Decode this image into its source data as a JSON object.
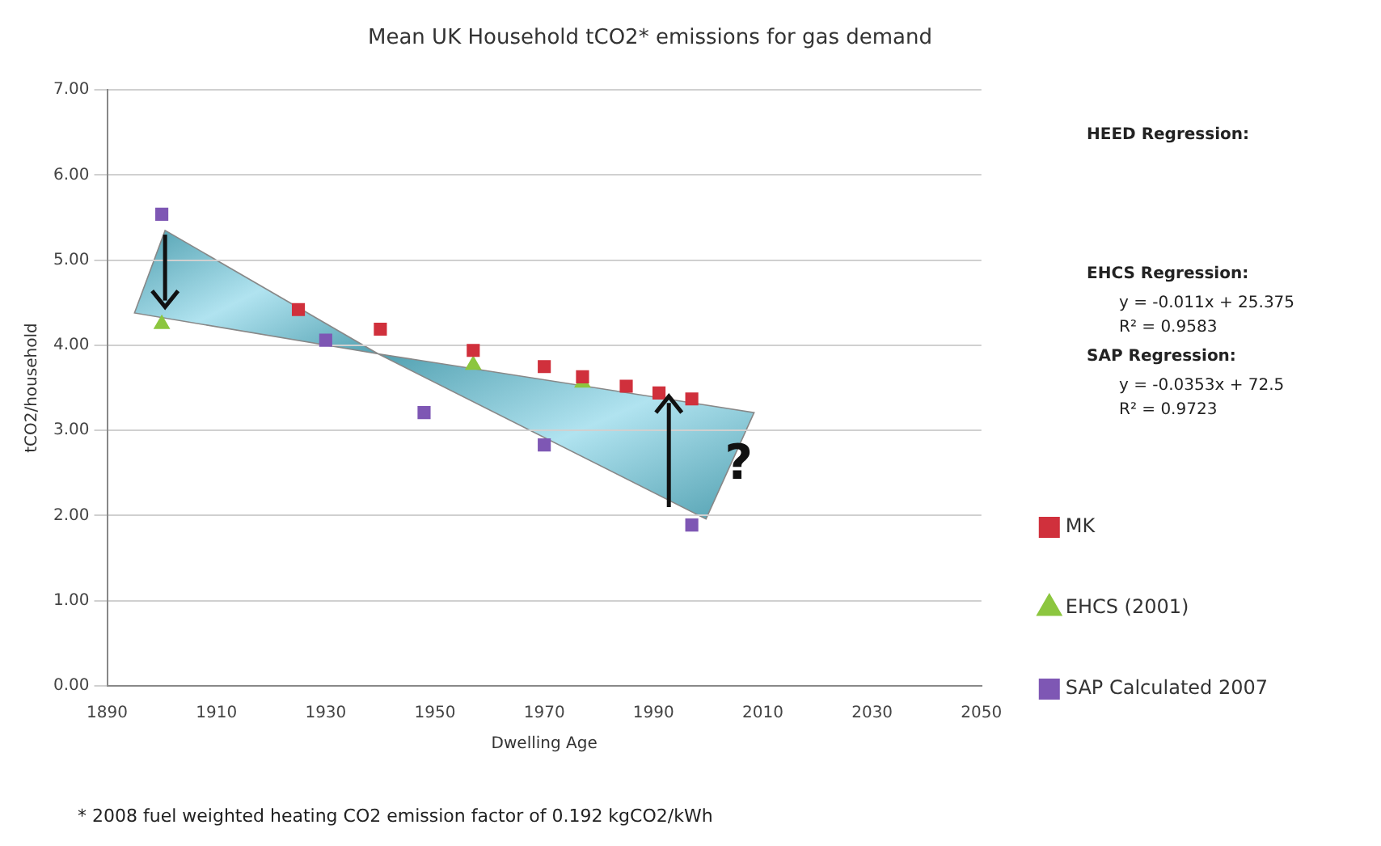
{
  "chart_data": {
    "type": "scatter",
    "title": "Mean UK Household tCO2* emissions for gas demand",
    "xlabel": "Dwelling Age",
    "ylabel": "tCO2/household",
    "series": [
      {
        "name": "MK",
        "color": "#d0303c",
        "marker": "square",
        "x": [
          1925,
          1940,
          1957,
          1970,
          1977,
          1985,
          1991,
          1997
        ],
        "values": [
          4.42,
          4.19,
          3.94,
          3.75,
          3.63,
          3.52,
          3.44,
          3.37
        ]
      },
      {
        "name": "EHCS (2001)",
        "color": "#8cc63f",
        "marker": "triangle",
        "x": [
          1900,
          1957,
          1977
        ],
        "values": [
          4.25,
          3.77,
          3.56
        ]
      },
      {
        "name": "SAP Calculated 2007",
        "color": "#7e57b4",
        "marker": "square",
        "x": [
          1900,
          1930,
          1948,
          1970,
          1997
        ],
        "values": [
          5.54,
          4.06,
          3.21,
          2.83,
          1.89
        ]
      }
    ],
    "xlim": [
      1890,
      2050
    ],
    "xticks": [
      1890,
      1910,
      1930,
      1950,
      1970,
      1990,
      2010,
      2030,
      2050
    ],
    "ylim": [
      0,
      7
    ],
    "yticks": [
      {
        "value": 0,
        "label": "0.00"
      },
      {
        "value": 1,
        "label": "1.00"
      },
      {
        "value": 2,
        "label": "2.00"
      },
      {
        "value": 3,
        "label": "3.00"
      },
      {
        "value": 4,
        "label": "4.00"
      },
      {
        "value": 5,
        "label": "5.00"
      },
      {
        "value": 6,
        "label": "6.00"
      },
      {
        "value": 7,
        "label": "7.00"
      }
    ],
    "grid": "y",
    "legend": "right",
    "annotations": [
      "HEED Regression:",
      "EHCS Regression:",
      "y = -0.011x + 25.375",
      "R² = 0.9583",
      "SAP Regression:",
      "y = -0.0353x + 72.5",
      "R² = 0.9723",
      "?",
      "* 2008 fuel weighted heating CO2 emission factor of 0.192 kgCO2/kWh"
    ]
  }
}
